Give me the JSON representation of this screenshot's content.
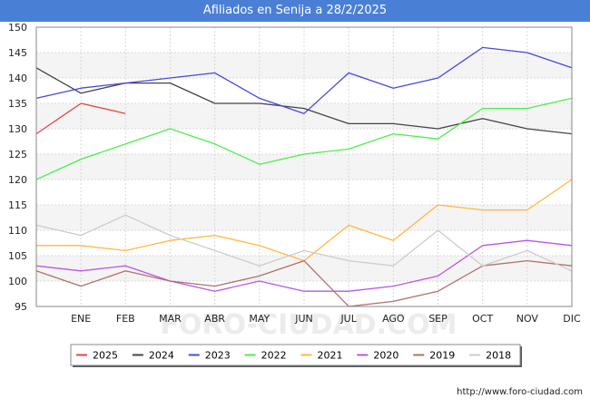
{
  "header": {
    "title": "Afiliados en Senija a 28/2/2025"
  },
  "source": "http://www.foro-ciudad.com",
  "watermark": "FORO-CIUDAD.COM",
  "chart_data": {
    "type": "line",
    "title": "Afiliados en Senija a 28/2/2025",
    "xlabel": "",
    "ylabel": "",
    "categories": [
      "",
      "ENE",
      "FEB",
      "MAR",
      "ABR",
      "MAY",
      "JUN",
      "JUL",
      "AGO",
      "SEP",
      "OCT",
      "NOV",
      "DIC"
    ],
    "ylim": [
      95,
      150
    ],
    "yticks": [
      95,
      100,
      105,
      110,
      115,
      120,
      125,
      130,
      135,
      140,
      145,
      150
    ],
    "grid": true,
    "legend_position": "bottom",
    "series": [
      {
        "name": "2025",
        "color": "#e84343",
        "values": [
          129,
          135,
          133,
          null,
          null,
          null,
          null,
          null,
          null,
          null,
          null,
          null,
          null
        ]
      },
      {
        "name": "2024",
        "color": "#444444",
        "values": [
          142,
          137,
          139,
          139,
          135,
          135,
          134,
          131,
          131,
          130,
          132,
          130,
          129
        ]
      },
      {
        "name": "2023",
        "color": "#4848e0",
        "values": [
          136,
          138,
          139,
          140,
          141,
          136,
          133,
          141,
          138,
          140,
          146,
          145,
          142
        ]
      },
      {
        "name": "2022",
        "color": "#4cee4c",
        "values": [
          120,
          124,
          127,
          130,
          127,
          123,
          125,
          126,
          129,
          128,
          134,
          134,
          136
        ]
      },
      {
        "name": "2021",
        "color": "#ffb83c",
        "values": [
          107,
          107,
          106,
          108,
          109,
          107,
          104,
          111,
          108,
          115,
          114,
          114,
          120
        ]
      },
      {
        "name": "2020",
        "color": "#b956e8",
        "values": [
          103,
          102,
          103,
          100,
          98,
          100,
          98,
          98,
          99,
          101,
          107,
          108,
          107
        ]
      },
      {
        "name": "2019",
        "color": "#b0706c",
        "values": [
          102,
          99,
          102,
          100,
          99,
          101,
          104,
          95,
          96,
          98,
          103,
          104,
          103
        ]
      },
      {
        "name": "2018",
        "color": "#cccccc",
        "values": [
          111,
          109,
          113,
          109,
          106,
          103,
          106,
          104,
          103,
          110,
          103,
          106,
          102
        ]
      }
    ]
  }
}
